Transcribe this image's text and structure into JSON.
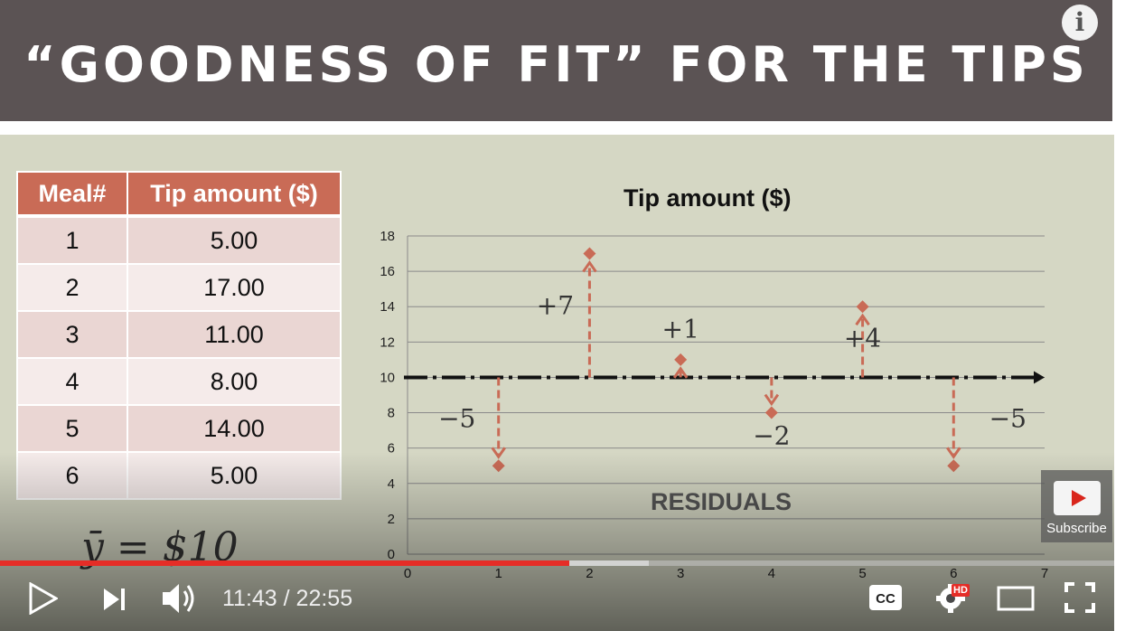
{
  "slide": {
    "title": "“GOODNESS OF FIT” FOR THE TIPS",
    "table": {
      "headers": [
        "Meal#",
        "Tip amount ($)"
      ],
      "rows": [
        [
          "1",
          "5.00"
        ],
        [
          "2",
          "17.00"
        ],
        [
          "3",
          "11.00"
        ],
        [
          "4",
          "8.00"
        ],
        [
          "5",
          "14.00"
        ],
        [
          "6",
          "5.00"
        ]
      ]
    },
    "mean_text": "ȳ = $10",
    "residuals_label": "RESIDUALS"
  },
  "chart_data": {
    "type": "scatter",
    "title": "Tip amount ($)",
    "x": [
      1,
      2,
      3,
      4,
      5,
      6
    ],
    "y": [
      5,
      17,
      11,
      8,
      14,
      5
    ],
    "xlim": [
      0,
      7
    ],
    "ylim": [
      0,
      18
    ],
    "x_ticks": [
      "0",
      "1",
      "2",
      "3",
      "4",
      "5",
      "6",
      "7"
    ],
    "y_ticks": [
      "0",
      "2",
      "4",
      "6",
      "8",
      "10",
      "12",
      "14",
      "16",
      "18"
    ],
    "mean_line": 10,
    "residual_labels": [
      "−5",
      "+7",
      "+1",
      "−2",
      "+4",
      "−5"
    ],
    "grid": true,
    "point_color": "#c96b56"
  },
  "player": {
    "time": "11:43 / 22:55",
    "progress_fraction": 0.511,
    "buffered_fraction": 0.582,
    "subscribe_label": "Subscribe",
    "hd_badge": "HD",
    "cc_label": "CC",
    "accent_color": "#e52d27",
    "icons": [
      "play-icon",
      "next-icon",
      "volume-icon",
      "cc-icon",
      "settings-icon",
      "theater-icon",
      "fullscreen-icon",
      "info-icon"
    ]
  }
}
